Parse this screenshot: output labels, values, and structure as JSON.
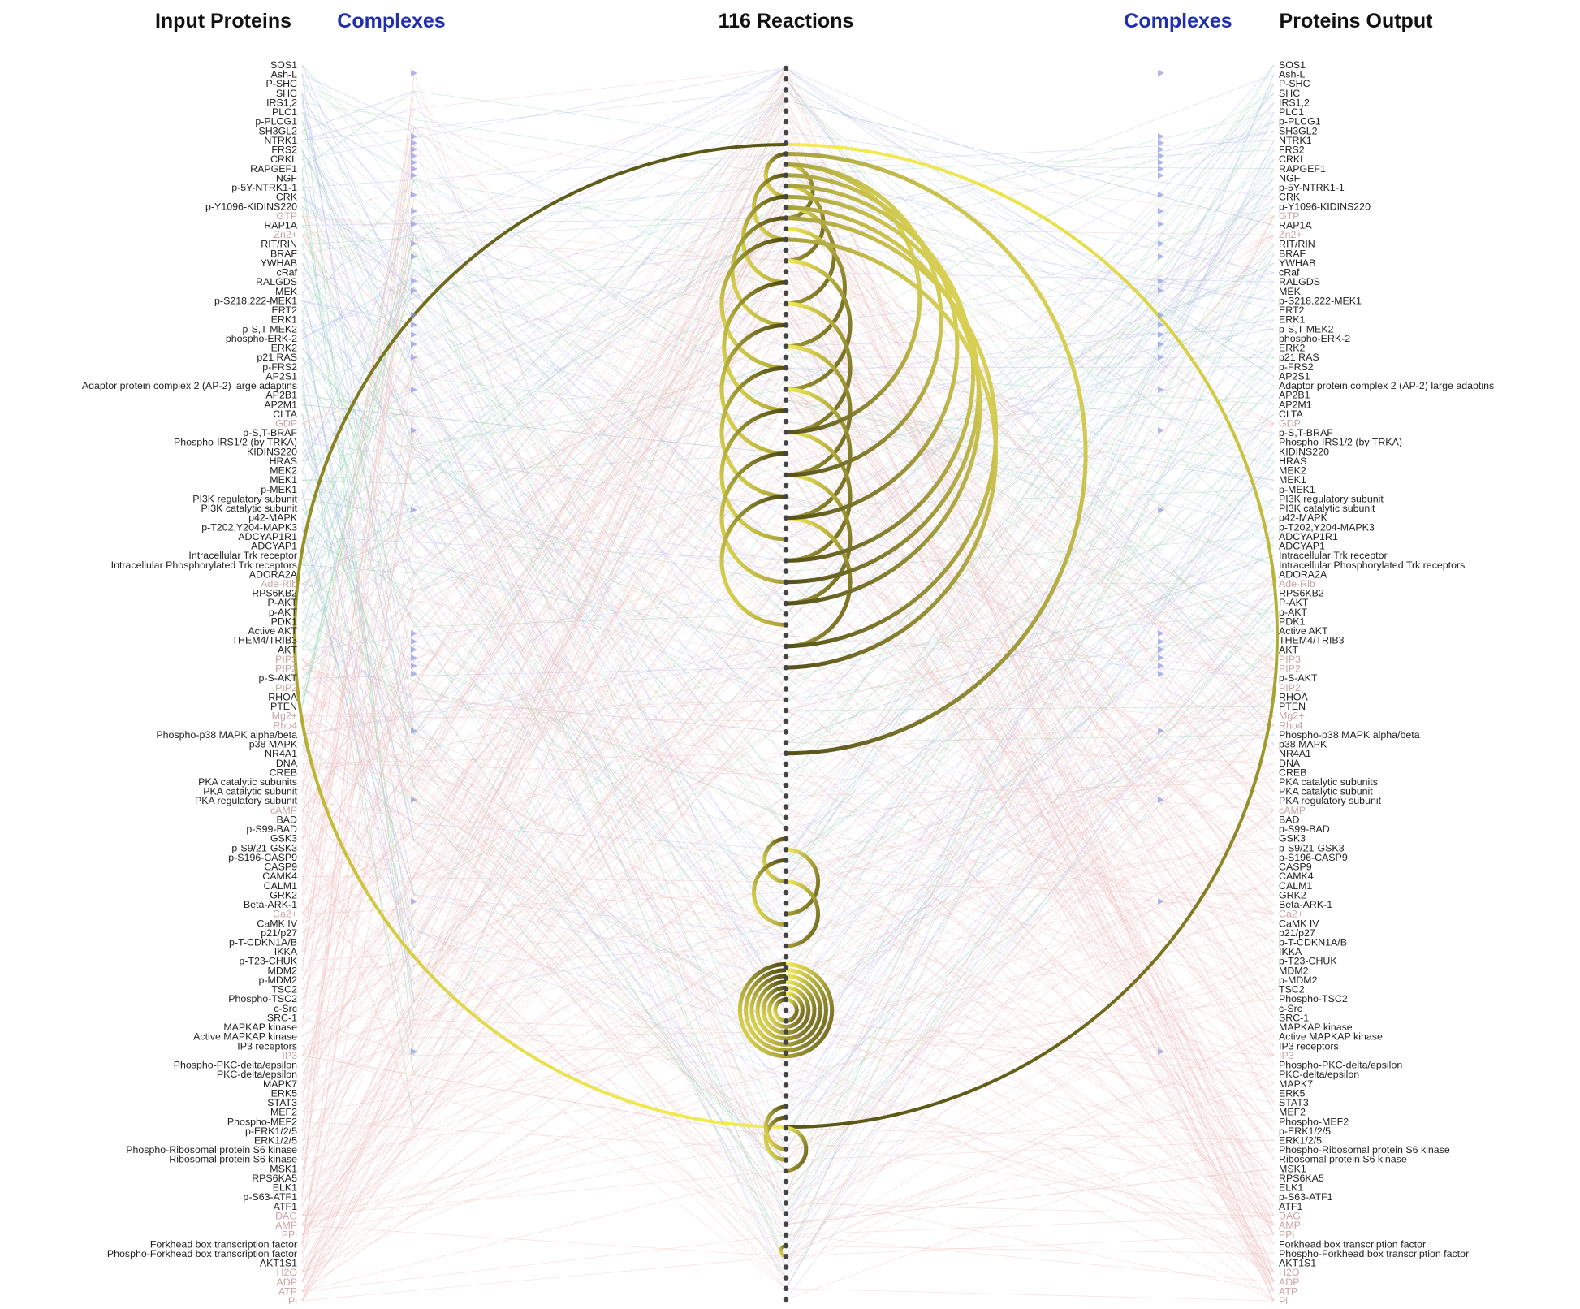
{
  "headers": {
    "input_proteins": "Input Proteins",
    "complexes_left": "Complexes",
    "reactions": "116 Reactions",
    "complexes_right": "Complexes",
    "proteins_output": "Proteins Output"
  },
  "colors": {
    "header_black": "#111111",
    "header_blue": "#1f2fb0",
    "arc_dark": "#5a5616",
    "arc_light": "#f2ea52",
    "reaction_dot": "#444444",
    "link_green": "#9fd8b5",
    "link_blue": "#b8bff0",
    "link_pink": "#f0c3c3",
    "small_molecule_label": "#c9a3a3"
  },
  "reaction_count": 116,
  "proteins": [
    {
      "name": "SOS1"
    },
    {
      "name": "Ash-L"
    },
    {
      "name": "P-SHC"
    },
    {
      "name": "SHC"
    },
    {
      "name": "IRS1,2"
    },
    {
      "name": "PLC1"
    },
    {
      "name": "p-PLCG1"
    },
    {
      "name": "SH3GL2"
    },
    {
      "name": "NTRK1"
    },
    {
      "name": "FRS2"
    },
    {
      "name": "CRKL"
    },
    {
      "name": "RAPGEF1"
    },
    {
      "name": "NGF"
    },
    {
      "name": "p-5Y-NTRK1-1"
    },
    {
      "name": "CRK"
    },
    {
      "name": "p-Y1096-KIDINS220"
    },
    {
      "name": "GTP",
      "small": true
    },
    {
      "name": "RAP1A"
    },
    {
      "name": "Zn2+",
      "small": true
    },
    {
      "name": "RIT/RIN"
    },
    {
      "name": "BRAF"
    },
    {
      "name": "YWHAB"
    },
    {
      "name": "cRaf"
    },
    {
      "name": "RALGDS"
    },
    {
      "name": "MEK"
    },
    {
      "name": "p-S218,222-MEK1"
    },
    {
      "name": "ERT2"
    },
    {
      "name": "ERK1"
    },
    {
      "name": "p-S,T-MEK2"
    },
    {
      "name": "phospho-ERK-2"
    },
    {
      "name": "ERK2"
    },
    {
      "name": "p21 RAS"
    },
    {
      "name": "p-FRS2"
    },
    {
      "name": "AP2S1"
    },
    {
      "name": "Adaptor protein complex 2 (AP-2) large adaptins"
    },
    {
      "name": "AP2B1"
    },
    {
      "name": "AP2M1"
    },
    {
      "name": "CLTA"
    },
    {
      "name": "GDP",
      "small": true
    },
    {
      "name": "p-S,T-BRAF"
    },
    {
      "name": "Phospho-IRS1/2 (by TRKA)"
    },
    {
      "name": "KIDINS220"
    },
    {
      "name": "HRAS"
    },
    {
      "name": "MEK2"
    },
    {
      "name": "MEK1"
    },
    {
      "name": "p-MEK1"
    },
    {
      "name": "PI3K regulatory subunit"
    },
    {
      "name": "PI3K catalytic subunit"
    },
    {
      "name": "p42-MAPK"
    },
    {
      "name": "p-T202,Y204-MAPK3"
    },
    {
      "name": "ADCYAP1R1"
    },
    {
      "name": "ADCYAP1"
    },
    {
      "name": "Intracellular Trk receptor"
    },
    {
      "name": "Intracellular Phosphorylated Trk receptors"
    },
    {
      "name": "ADORA2A"
    },
    {
      "name": "Ade-Rib",
      "small": true
    },
    {
      "name": "RPS6KB2"
    },
    {
      "name": "P-AKT"
    },
    {
      "name": "p-AKT"
    },
    {
      "name": "PDK1"
    },
    {
      "name": "Active AKT"
    },
    {
      "name": "THEM4/TRIB3"
    },
    {
      "name": "AKT"
    },
    {
      "name": "PIP3",
      "small": true
    },
    {
      "name": "PIP2",
      "small": true
    },
    {
      "name": "p-S-AKT"
    },
    {
      "name": "PIP2",
      "small": true
    },
    {
      "name": "RHOA"
    },
    {
      "name": "PTEN"
    },
    {
      "name": "Mg2+",
      "small": true
    },
    {
      "name": "Rho4",
      "small": true
    },
    {
      "name": "Phospho-p38 MAPK alpha/beta"
    },
    {
      "name": "p38 MAPK"
    },
    {
      "name": "NR4A1"
    },
    {
      "name": "DNA"
    },
    {
      "name": "CREB"
    },
    {
      "name": "PKA catalytic subunits"
    },
    {
      "name": "PKA catalytic subunit"
    },
    {
      "name": "PKA regulatory subunit"
    },
    {
      "name": "cAMP",
      "small": true
    },
    {
      "name": "BAD"
    },
    {
      "name": "p-S99-BAD"
    },
    {
      "name": "GSK3"
    },
    {
      "name": "p-S9/21-GSK3"
    },
    {
      "name": "p-S196-CASP9"
    },
    {
      "name": "CASP9"
    },
    {
      "name": "CAMK4"
    },
    {
      "name": "CALM1"
    },
    {
      "name": "GRK2"
    },
    {
      "name": "Beta-ARK-1"
    },
    {
      "name": "Ca2+",
      "small": true
    },
    {
      "name": "CaMK IV"
    },
    {
      "name": "p21/p27"
    },
    {
      "name": "p-T-CDKN1A/B"
    },
    {
      "name": "IKKA"
    },
    {
      "name": "p-T23-CHUK"
    },
    {
      "name": "MDM2"
    },
    {
      "name": "p-MDM2"
    },
    {
      "name": "TSC2"
    },
    {
      "name": "Phospho-TSC2"
    },
    {
      "name": "c-Src"
    },
    {
      "name": "SRC-1"
    },
    {
      "name": "MAPKAP kinase"
    },
    {
      "name": "Active MAPKAP kinase"
    },
    {
      "name": "IP3 receptors"
    },
    {
      "name": "IP3",
      "small": true
    },
    {
      "name": "Phospho-PKC-delta/epsilon"
    },
    {
      "name": "PKC-delta/epsilon"
    },
    {
      "name": "MAPK7"
    },
    {
      "name": "ERK5"
    },
    {
      "name": "STAT3"
    },
    {
      "name": "MEF2"
    },
    {
      "name": "Phospho-MEF2"
    },
    {
      "name": "p-ERK1/2/5"
    },
    {
      "name": "ERK1/2/5"
    },
    {
      "name": "Phospho-Ribosomal protein S6 kinase"
    },
    {
      "name": "Ribosomal protein S6 kinase"
    },
    {
      "name": "MSK1"
    },
    {
      "name": "RPS6KA5"
    },
    {
      "name": "ELK1"
    },
    {
      "name": "p-S63-ATF1"
    },
    {
      "name": "ATF1"
    },
    {
      "name": "DAG",
      "small": true
    },
    {
      "name": "AMP",
      "small": true
    },
    {
      "name": "PPi",
      "small": true
    },
    {
      "name": "Forkhead box transcription factor"
    },
    {
      "name": "Phospho-Forkhead box transcription factor"
    },
    {
      "name": "AKT1S1"
    },
    {
      "name": "H2O",
      "small": true
    },
    {
      "name": "ADP",
      "small": true
    },
    {
      "name": "ATP",
      "small": true
    },
    {
      "name": "Pi",
      "small": true
    }
  ]
}
